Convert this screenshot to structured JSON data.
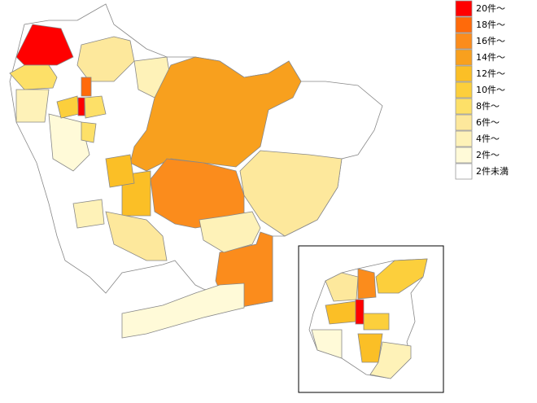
{
  "legend": {
    "items": [
      {
        "label": "20件～",
        "color": "#ff0000"
      },
      {
        "label": "18件～",
        "color": "#ff6a0a"
      },
      {
        "label": "16件～",
        "color": "#fb8c1c"
      },
      {
        "label": "14件～",
        "color": "#f8a01e"
      },
      {
        "label": "12件～",
        "color": "#fbbf26"
      },
      {
        "label": "10件～",
        "color": "#fccf3c"
      },
      {
        "label": "8件～",
        "color": "#fde068"
      },
      {
        "label": "6件～",
        "color": "#fde89c"
      },
      {
        "label": "4件～",
        "color": "#fef2b8"
      },
      {
        "label": "2件～",
        "color": "#fffad8"
      },
      {
        "label": "2件未満",
        "color": "#ffffff"
      }
    ]
  }
}
